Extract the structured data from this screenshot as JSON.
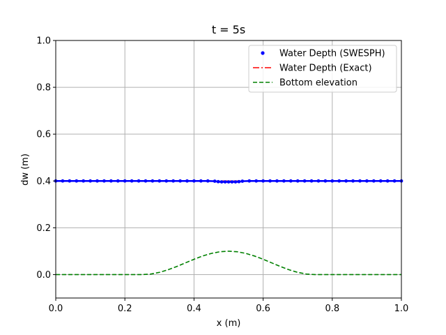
{
  "chart_data": {
    "type": "line",
    "title": "t = 5s",
    "xlabel": "x (m)",
    "ylabel": "dw (m)",
    "xlim": [
      0.0,
      1.0
    ],
    "ylim": [
      -0.1,
      1.0
    ],
    "xticks": [
      0.0,
      0.2,
      0.4,
      0.6,
      0.8,
      1.0
    ],
    "xtick_labels": [
      "0.0",
      "0.2",
      "0.4",
      "0.6",
      "0.8",
      "1.0"
    ],
    "yticks": [
      0.0,
      0.2,
      0.4,
      0.6,
      0.8,
      1.0
    ],
    "ytick_labels": [
      "0.0",
      "0.2",
      "0.4",
      "0.6",
      "0.8",
      "1.0"
    ],
    "grid": true,
    "legend_position": "top-right",
    "series": [
      {
        "name": "Water Depth (SWESPH)",
        "style": "dots",
        "color": "#0000ff",
        "x": [
          0.0,
          0.02,
          0.04,
          0.06,
          0.08,
          0.1,
          0.12,
          0.14,
          0.16,
          0.18,
          0.2,
          0.22,
          0.24,
          0.26,
          0.28,
          0.3,
          0.32,
          0.34,
          0.36,
          0.38,
          0.4,
          0.42,
          0.44,
          0.46,
          0.47,
          0.48,
          0.49,
          0.5,
          0.51,
          0.52,
          0.53,
          0.54,
          0.56,
          0.58,
          0.6,
          0.62,
          0.64,
          0.66,
          0.68,
          0.7,
          0.72,
          0.74,
          0.76,
          0.78,
          0.8,
          0.82,
          0.84,
          0.86,
          0.88,
          0.9,
          0.92,
          0.94,
          0.96,
          0.98,
          1.0
        ],
        "y": [
          0.4,
          0.4,
          0.4,
          0.4,
          0.4,
          0.4,
          0.4,
          0.4,
          0.4,
          0.4,
          0.4,
          0.4,
          0.4,
          0.4,
          0.4,
          0.4,
          0.4,
          0.4,
          0.4,
          0.4,
          0.4,
          0.4,
          0.4,
          0.399,
          0.397,
          0.396,
          0.396,
          0.396,
          0.396,
          0.396,
          0.397,
          0.399,
          0.4,
          0.4,
          0.4,
          0.4,
          0.4,
          0.4,
          0.4,
          0.4,
          0.4,
          0.4,
          0.4,
          0.4,
          0.4,
          0.4,
          0.4,
          0.4,
          0.4,
          0.4,
          0.4,
          0.4,
          0.4,
          0.4,
          0.4
        ]
      },
      {
        "name": "Water Depth (Exact)",
        "style": "dashdot",
        "color": "#ff0000",
        "x": [
          0.0,
          1.0
        ],
        "y": [
          0.4,
          0.4
        ]
      },
      {
        "name": "Bottom elevation",
        "style": "dashed",
        "color": "#008000",
        "x": [
          0.0,
          0.25,
          0.275,
          0.3,
          0.325,
          0.35,
          0.375,
          0.4,
          0.425,
          0.45,
          0.475,
          0.5,
          0.525,
          0.55,
          0.575,
          0.6,
          0.625,
          0.65,
          0.675,
          0.7,
          0.725,
          0.75,
          1.0
        ],
        "y": [
          0.0,
          0.0,
          0.0024,
          0.0095,
          0.0206,
          0.0345,
          0.05,
          0.0655,
          0.0794,
          0.0905,
          0.0976,
          0.1,
          0.0976,
          0.0905,
          0.0794,
          0.0655,
          0.05,
          0.0345,
          0.0206,
          0.0095,
          0.0024,
          0.0,
          0.0
        ]
      }
    ]
  }
}
